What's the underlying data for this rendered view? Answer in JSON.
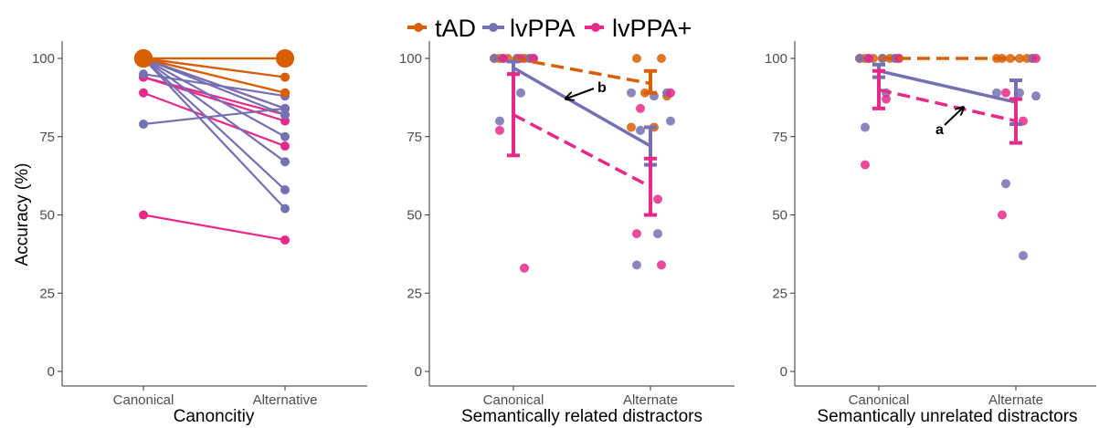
{
  "colors": {
    "tAD": "#d95f02",
    "lvPPA": "#7570b3",
    "lvPPA+": "#e7298a"
  },
  "legend": [
    "tAD",
    "lvPPA",
    "lvPPA+"
  ],
  "chart_data": [
    {
      "type": "line",
      "panel": "left",
      "xlabel": "Canoncitiy",
      "ylabel": "Accuracy (%)",
      "categories": [
        "Canonical",
        "Alternative"
      ],
      "ylim": [
        0,
        100
      ],
      "yticks": [
        0,
        25,
        50,
        75,
        100
      ],
      "grid": false,
      "legend": "top",
      "series": [
        {
          "name": "tAD",
          "lines": [
            [
              100,
              100
            ],
            [
              100,
              94
            ],
            [
              100,
              89
            ],
            [
              100,
              89
            ],
            [
              100,
              100
            ]
          ]
        },
        {
          "name": "lvPPA",
          "lines": [
            [
              100,
              94
            ],
            [
              100,
              84
            ],
            [
              100,
              75
            ],
            [
              100,
              67
            ],
            [
              100,
              58
            ],
            [
              100,
              52
            ],
            [
              95,
              88
            ],
            [
              79,
              84
            ],
            [
              100,
              82
            ]
          ]
        },
        {
          "name": "lvPPA+",
          "lines": [
            [
              94,
              82
            ],
            [
              89,
              72
            ],
            [
              94,
              80
            ],
            [
              50,
              42
            ],
            [
              100,
              84
            ]
          ]
        }
      ]
    },
    {
      "type": "scatter",
      "panel": "middle",
      "xlabel": "Semantically related distractors",
      "categories": [
        "Canonical",
        "Alternate"
      ],
      "ylim": [
        0,
        100
      ],
      "yticks": [
        0,
        25,
        50,
        75,
        100
      ],
      "series": [
        {
          "name": "tAD",
          "mean": [
            100,
            92
          ],
          "err": [
            [
              0,
              0
            ],
            [
              3,
              4
            ]
          ],
          "style": "dashed",
          "points": [
            [
              100,
              100,
              100,
              100,
              100,
              100
            ],
            [
              100,
              100,
              89,
              88,
              78,
              78
            ]
          ]
        },
        {
          "name": "lvPPA",
          "mean": [
            97,
            72
          ],
          "err": [
            [
              2,
              2
            ],
            [
              6,
              6
            ]
          ],
          "style": "solid",
          "points": [
            [
              100,
              100,
              100,
              100,
              100,
              89,
              80
            ],
            [
              89,
              89,
              88,
              80,
              77,
              44,
              34
            ]
          ]
        },
        {
          "name": "lvPPA+",
          "mean": [
            82,
            59
          ],
          "err": [
            [
              13,
              13
            ],
            [
              9,
              9
            ]
          ],
          "style": "dashed",
          "points": [
            [
              100,
              100,
              100,
              77,
              33
            ],
            [
              89,
              84,
              55,
              44,
              34
            ]
          ]
        }
      ],
      "annotations": [
        {
          "text": "b"
        }
      ]
    },
    {
      "type": "scatter",
      "panel": "right",
      "xlabel": "Semantically unrelated distractors",
      "categories": [
        "Canonical",
        "Alternate"
      ],
      "ylim": [
        0,
        100
      ],
      "yticks": [
        0,
        25,
        50,
        75,
        100
      ],
      "series": [
        {
          "name": "tAD",
          "mean": [
            100,
            100
          ],
          "err": [
            [
              0,
              0
            ],
            [
              0,
              0
            ]
          ],
          "style": "dashed",
          "points": [
            [
              100,
              100,
              100,
              100,
              100,
              100
            ],
            [
              100,
              100,
              100,
              100,
              100,
              100
            ]
          ]
        },
        {
          "name": "lvPPA",
          "mean": [
            96,
            86
          ],
          "err": [
            [
              2,
              2
            ],
            [
              7,
              7
            ]
          ],
          "style": "solid",
          "points": [
            [
              100,
              100,
              100,
              100,
              100,
              89,
              78
            ],
            [
              100,
              89,
              89,
              88,
              60,
              37
            ]
          ]
        },
        {
          "name": "lvPPA+",
          "mean": [
            90,
            80
          ],
          "err": [
            [
              6,
              6
            ],
            [
              7,
              7
            ]
          ],
          "style": "dashed",
          "points": [
            [
              100,
              100,
              87,
              66
            ],
            [
              100,
              89,
              80,
              50
            ]
          ]
        }
      ],
      "annotations": [
        {
          "text": "a"
        }
      ]
    }
  ]
}
